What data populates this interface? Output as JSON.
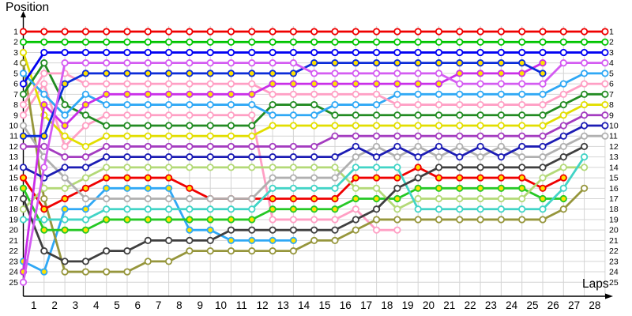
{
  "chart_data": {
    "type": "line",
    "ylabel": "Position",
    "xlabel": "Laps",
    "x_axis": {
      "label": "Laps",
      "ticks_shown": [
        "1",
        "2",
        "3",
        "4",
        "5",
        "6",
        "7",
        "8",
        "9",
        "10",
        "11",
        "12",
        "13",
        "14",
        "15",
        "16",
        "17",
        "18",
        "19",
        "20",
        "21",
        "22",
        "23",
        "24",
        "25",
        "26",
        "27",
        "28"
      ],
      "range": [
        1,
        28
      ],
      "grid": true
    },
    "y_axis": {
      "label": "Position",
      "ticks_left": [
        "1",
        "2",
        "3",
        "4",
        "5",
        "6",
        "7",
        "8",
        "9",
        "10",
        "11",
        "12",
        "13",
        "14",
        "15",
        "16",
        "17",
        "18",
        "19",
        "20",
        "21",
        "22",
        "23",
        "24",
        "25"
      ],
      "ticks_right": [
        "1",
        "2",
        "3",
        "4",
        "5",
        "6",
        "7",
        "8",
        "9",
        "10",
        "11",
        "12",
        "13",
        "14",
        "15",
        "16",
        "17",
        "18",
        "19",
        "20",
        "21",
        "22",
        "23",
        "24",
        "25"
      ],
      "range": [
        1,
        25
      ],
      "inverted": true,
      "grid": true
    },
    "legend": "none",
    "grid_color": "#d4d4d4",
    "axis_color": "#000000",
    "marker_fills": {
      "white": "#ffffff",
      "yellow": "#ffe200"
    },
    "note": "positions array: first entry = starting grid column (drawn on the y-axis), then laps 1..28; null = car no longer running/classified on that lap",
    "series": [
      {
        "id": "car-red",
        "color": "#ef0000",
        "marker": "white",
        "positions": [
          1,
          1,
          1,
          1,
          1,
          1,
          1,
          1,
          1,
          1,
          1,
          1,
          1,
          1,
          1,
          1,
          1,
          1,
          1,
          1,
          1,
          1,
          1,
          1,
          1,
          1,
          1,
          1,
          1
        ]
      },
      {
        "id": "car-green",
        "color": "#00c400",
        "marker": "white",
        "positions": [
          2,
          2,
          2,
          2,
          2,
          2,
          2,
          2,
          2,
          2,
          2,
          2,
          2,
          2,
          2,
          2,
          2,
          2,
          2,
          2,
          2,
          2,
          2,
          2,
          2,
          2,
          2,
          2,
          2
        ]
      },
      {
        "id": "car-blue",
        "color": "#0202f2",
        "marker": "white",
        "positions": [
          6,
          3,
          3,
          3,
          3,
          3,
          3,
          3,
          3,
          3,
          3,
          3,
          3,
          3,
          3,
          3,
          3,
          3,
          3,
          3,
          3,
          3,
          3,
          3,
          3,
          3,
          3,
          3,
          3
        ]
      },
      {
        "id": "car-violet-white",
        "color": "#d45cf2",
        "marker": "white",
        "positions": [
          25,
          14,
          4,
          4,
          4,
          4,
          4,
          4,
          4,
          4,
          4,
          4,
          4,
          4,
          5,
          5,
          5,
          5,
          5,
          5,
          5,
          6,
          6,
          6,
          6,
          6,
          4,
          4,
          4
        ]
      },
      {
        "id": "car-navy-yellow",
        "color": "#0b2cd8",
        "marker": "yellow",
        "positions": [
          11,
          11,
          6,
          5,
          5,
          5,
          5,
          5,
          5,
          5,
          5,
          5,
          5,
          5,
          4,
          4,
          4,
          4,
          4,
          4,
          4,
          4,
          4,
          4,
          4,
          5,
          null,
          null,
          null
        ]
      },
      {
        "id": "car-violet-yellow",
        "color": "#c92fe8",
        "marker": "yellow",
        "positions": [
          24,
          8,
          10,
          8,
          7,
          7,
          7,
          7,
          7,
          7,
          7,
          7,
          6,
          6,
          6,
          6,
          6,
          6,
          6,
          6,
          6,
          5,
          5,
          5,
          5,
          4,
          null,
          null,
          null
        ]
      },
      {
        "id": "car-pink",
        "color": "#ff9fc4",
        "marker": "white",
        "positions": [
          8,
          5,
          5,
          6,
          6,
          6,
          6,
          6,
          6,
          6,
          6,
          6,
          7,
          7,
          7,
          7,
          7,
          7,
          8,
          8,
          8,
          8,
          8,
          8,
          8,
          8,
          7,
          6,
          6
        ]
      },
      {
        "id": "car-skyblue",
        "color": "#2fa8f5",
        "marker": "white",
        "positions": [
          5,
          7,
          9,
          7,
          8,
          8,
          8,
          8,
          8,
          8,
          8,
          8,
          9,
          9,
          9,
          8,
          8,
          8,
          7,
          7,
          7,
          7,
          7,
          7,
          7,
          7,
          6,
          5,
          5
        ]
      },
      {
        "id": "car-darkgreen",
        "color": "#228b22",
        "marker": "white",
        "positions": [
          7,
          4,
          8,
          9,
          10,
          10,
          10,
          10,
          10,
          10,
          10,
          10,
          8,
          8,
          8,
          9,
          9,
          9,
          9,
          9,
          9,
          9,
          9,
          9,
          9,
          9,
          8,
          7,
          7
        ]
      },
      {
        "id": "car-yellow",
        "color": "#e2de00",
        "marker": "white",
        "positions": [
          3,
          9,
          11,
          12,
          11,
          11,
          11,
          11,
          11,
          11,
          11,
          11,
          10,
          10,
          10,
          10,
          10,
          10,
          10,
          10,
          10,
          10,
          10,
          10,
          10,
          10,
          9,
          8,
          8
        ]
      },
      {
        "id": "car-purple",
        "color": "#a43cc0",
        "marker": "white",
        "positions": [
          12,
          12,
          13,
          13,
          12,
          12,
          12,
          12,
          12,
          12,
          12,
          12,
          12,
          12,
          12,
          11,
          11,
          11,
          11,
          11,
          11,
          11,
          11,
          11,
          11,
          11,
          10,
          9,
          9
        ]
      },
      {
        "id": "car-navy-white",
        "color": "#1c1cb4",
        "marker": "white",
        "positions": [
          14,
          15,
          14,
          14,
          13,
          13,
          13,
          13,
          13,
          13,
          13,
          13,
          13,
          13,
          13,
          13,
          12,
          13,
          12,
          13,
          12,
          13,
          12,
          13,
          12,
          12,
          11,
          10,
          10
        ]
      },
      {
        "id": "car-gray",
        "color": "#b0b0b0",
        "marker": "white",
        "positions": [
          10,
          13,
          15,
          17,
          17,
          17,
          17,
          17,
          17,
          17,
          17,
          17,
          15,
          15,
          15,
          15,
          13,
          12,
          13,
          12,
          13,
          12,
          13,
          12,
          13,
          13,
          12,
          11,
          11
        ]
      },
      {
        "id": "car-black",
        "color": "#3f3f3f",
        "marker": "white",
        "positions": [
          17,
          22,
          23,
          23,
          22,
          22,
          21,
          21,
          21,
          21,
          20,
          20,
          20,
          20,
          20,
          20,
          19,
          18,
          16,
          15,
          14,
          14,
          14,
          14,
          14,
          14,
          13,
          12,
          null
        ]
      },
      {
        "id": "car-turquoise",
        "color": "#42d4c6",
        "marker": "white",
        "positions": [
          19,
          19,
          19,
          19,
          18,
          18,
          18,
          18,
          18,
          18,
          18,
          18,
          16,
          16,
          16,
          16,
          14,
          14,
          14,
          18,
          18,
          18,
          18,
          18,
          18,
          18,
          16,
          13,
          null
        ]
      },
      {
        "id": "car-palegreen",
        "color": "#b3d977",
        "marker": "white",
        "positions": [
          18,
          16,
          16,
          15,
          14,
          14,
          14,
          14,
          14,
          14,
          14,
          14,
          14,
          14,
          14,
          14,
          16,
          16,
          18,
          17,
          17,
          17,
          17,
          17,
          17,
          15,
          14,
          14,
          null
        ]
      },
      {
        "id": "car-red-yellow",
        "color": "#ef0000",
        "marker": "yellow",
        "positions": [
          15,
          18,
          17,
          16,
          15,
          15,
          15,
          15,
          16,
          17,
          17,
          17,
          17,
          17,
          17,
          17,
          15,
          15,
          15,
          14,
          15,
          15,
          15,
          15,
          15,
          16,
          15,
          null,
          null
        ]
      },
      {
        "id": "car-green-yellow",
        "color": "#25c825",
        "marker": "yellow",
        "positions": [
          16,
          20,
          20,
          20,
          19,
          19,
          19,
          19,
          19,
          19,
          19,
          19,
          18,
          18,
          18,
          18,
          17,
          17,
          17,
          16,
          16,
          16,
          16,
          16,
          16,
          17,
          17,
          null,
          null
        ]
      },
      {
        "id": "car-olive",
        "color": "#96963c",
        "marker": "white",
        "positions": [
          4,
          17,
          24,
          24,
          24,
          24,
          23,
          23,
          22,
          22,
          22,
          22,
          22,
          22,
          21,
          21,
          20,
          19,
          19,
          19,
          19,
          19,
          19,
          19,
          19,
          19,
          18,
          16,
          null
        ]
      },
      {
        "id": "car-pink2",
        "color": "#ff9fc4",
        "marker": "white",
        "positions": [
          9,
          6,
          12,
          10,
          9,
          9,
          9,
          9,
          9,
          9,
          9,
          9,
          19,
          19,
          19,
          19,
          18,
          20,
          20,
          null,
          null,
          null,
          null,
          null,
          null,
          null,
          null,
          null,
          null
        ]
      },
      {
        "id": "car-skyblue-yellow",
        "color": "#2fa8f5",
        "marker": "yellow",
        "positions": [
          23,
          24,
          18,
          18,
          16,
          16,
          16,
          16,
          20,
          20,
          21,
          21,
          21,
          21,
          null,
          null,
          null,
          null,
          null,
          null,
          null,
          null,
          null,
          null,
          null,
          null,
          null,
          null,
          null
        ]
      }
    ]
  }
}
